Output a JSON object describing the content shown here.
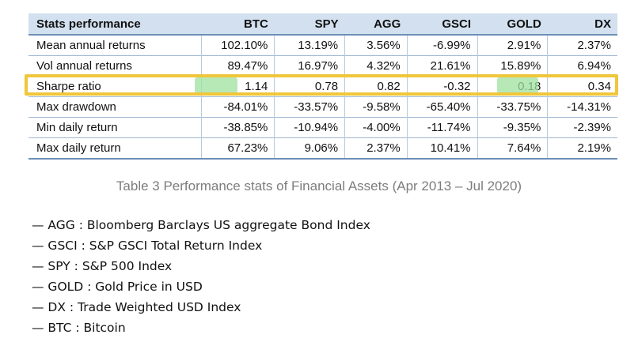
{
  "table": {
    "headers": [
      "Stats performance",
      "BTC",
      "SPY",
      "AGG",
      "GSCI",
      "GOLD",
      "DX"
    ],
    "rows": [
      [
        "Mean annual returns",
        "102.10%",
        "13.19%",
        "3.56%",
        "-6.99%",
        "2.91%",
        "2.37%"
      ],
      [
        "Vol annual returns",
        "89.47%",
        "16.97%",
        "4.32%",
        "21.61%",
        "15.89%",
        "6.94%"
      ],
      [
        "Sharpe ratio",
        "1.14",
        "0.78",
        "0.82",
        "-0.32",
        "0.18",
        "0.34"
      ],
      [
        "Max drawdown",
        "-84.01%",
        "-33.57%",
        "-9.58%",
        "-65.40%",
        "-33.75%",
        "-14.31%"
      ],
      [
        "Min daily return",
        "-38.85%",
        "-10.94%",
        "-4.00%",
        "-11.74%",
        "-9.35%",
        "-2.39%"
      ],
      [
        "Max daily return",
        "67.23%",
        "9.06%",
        "2.37%",
        "10.41%",
        "7.64%",
        "2.19%"
      ]
    ]
  },
  "caption": "Table 3 Performance stats of Financial Assets (Apr 2013 – Jul 2020)",
  "legend": [
    "— AGG : Bloomberg Barclays US aggregate Bond Index",
    "— GSCI : S&P GSCI Total Return Index",
    "— SPY : S&P 500 Index",
    "— GOLD : Gold Price in USD",
    "— DX : Trade Weighted USD Index",
    "— BTC : Bitcoin"
  ],
  "colors": {
    "header_bg": "#d2e0ef",
    "highlight_box": "#f0c63b",
    "highlight_marker": "#9fe29f",
    "caption_text": "#7d7d7d"
  }
}
